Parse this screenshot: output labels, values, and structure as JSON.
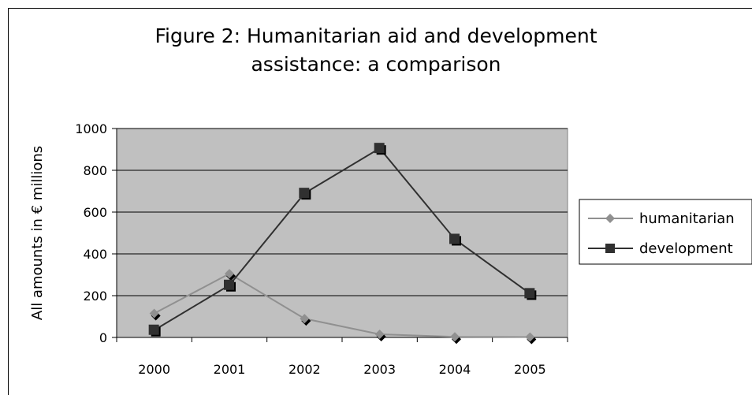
{
  "chart_data": {
    "type": "line",
    "title": [
      "Figure 2: Humanitarian aid and development",
      "assistance: a comparison"
    ],
    "xlabel": "",
    "ylabel": "All amounts in € millions",
    "categories": [
      "2000",
      "2001",
      "2002",
      "2003",
      "2004",
      "2005"
    ],
    "ylim": [
      0,
      1000
    ],
    "yticks": [
      0,
      200,
      400,
      600,
      800,
      1000
    ],
    "grid": true,
    "legend_position": "right",
    "series": [
      {
        "name": "humanitarian",
        "values": [
          115,
          305,
          90,
          15,
          3,
          2
        ],
        "color": "#909090",
        "marker": "diamond"
      },
      {
        "name": "development",
        "values": [
          35,
          250,
          690,
          905,
          470,
          210
        ],
        "color": "#303030",
        "marker": "square"
      }
    ],
    "plot_background": "#c0c0c0"
  }
}
